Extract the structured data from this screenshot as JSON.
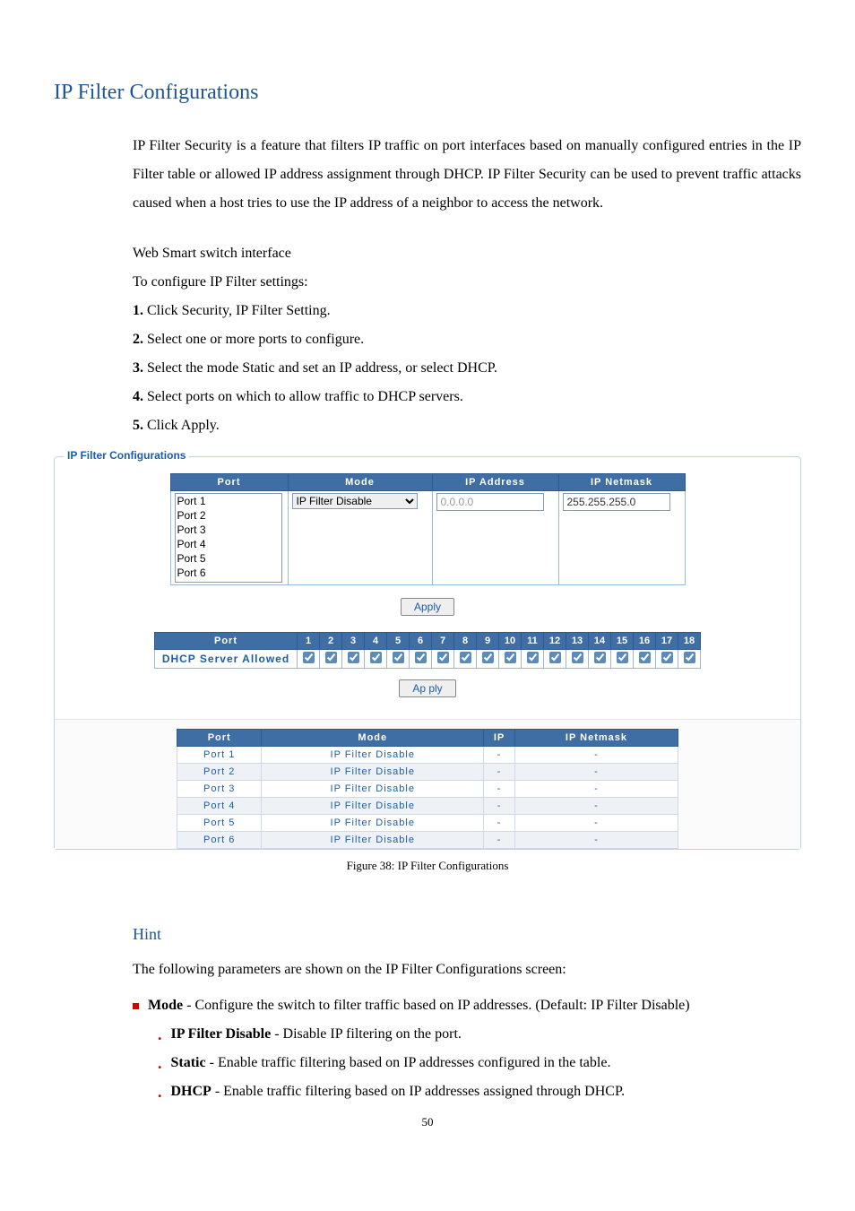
{
  "title": "IP Filter Configurations",
  "intro": "IP Filter Security is a feature that filters IP traffic on port interfaces based on manually configured entries in the IP Filter table or allowed IP address assignment through DHCP. IP Filter Security can be used to prevent traffic attacks caused when a host tries to use the IP address of a neighbor to access the network.",
  "pre_steps": [
    "Web Smart switch interface",
    "To configure IP Filter settings:"
  ],
  "steps": [
    "Click Security, IP Filter Setting.",
    "Select one or more ports to configure.",
    "Select the mode Static and set an IP address, or select DHCP.",
    "Select ports on which to allow traffic to DHCP servers.",
    "Click Apply."
  ],
  "figure": {
    "legend": "IP Filter Configurations",
    "cfg": {
      "headers": [
        "Port",
        "Mode",
        "IP Address",
        "IP Netmask"
      ],
      "ports": [
        "Port 1",
        "Port 2",
        "Port 3",
        "Port 4",
        "Port 5",
        "Port 6"
      ],
      "mode_value": "IP Filter Disable",
      "ip_value": "0.0.0.0",
      "netmask_value": "255.255.255.0",
      "apply_label": "Apply"
    },
    "dhcp": {
      "port_label": "Port",
      "numbers": [
        1,
        2,
        3,
        4,
        5,
        6,
        7,
        8,
        9,
        10,
        11,
        12,
        13,
        14,
        15,
        16,
        17,
        18
      ],
      "row_label": "DHCP Server Allowed",
      "apply_label": "Ap ply"
    },
    "status": {
      "headers": [
        "Port",
        "Mode",
        "IP",
        "IP Netmask"
      ],
      "rows": [
        {
          "port": "Port 1",
          "mode": "IP Filter Disable",
          "ip": "-",
          "mask": "-"
        },
        {
          "port": "Port 2",
          "mode": "IP Filter Disable",
          "ip": "-",
          "mask": "-"
        },
        {
          "port": "Port 3",
          "mode": "IP Filter Disable",
          "ip": "-",
          "mask": "-"
        },
        {
          "port": "Port 4",
          "mode": "IP Filter Disable",
          "ip": "-",
          "mask": "-"
        },
        {
          "port": "Port 5",
          "mode": "IP Filter Disable",
          "ip": "-",
          "mask": "-"
        },
        {
          "port": "Port 6",
          "mode": "IP Filter Disable",
          "ip": "-",
          "mask": "-"
        }
      ]
    }
  },
  "caption": "Figure 38: IP Filter Configurations",
  "hint": {
    "title": "Hint",
    "lead": "The following parameters are shown on the IP Filter Configurations screen:",
    "mode_label": "Mode",
    "mode_text": " - Configure the switch to filter traffic based on IP addresses. (Default: IP Filter Disable)",
    "sub": [
      {
        "label": "IP Filter Disable",
        "text": " - Disable IP filtering on the port."
      },
      {
        "label": "Static",
        "text": " - Enable traffic filtering based on IP addresses configured in the table."
      },
      {
        "label": "DHCP",
        "text": " - Enable traffic filtering based on IP addresses assigned through DHCP."
      }
    ]
  },
  "page_number": "50"
}
